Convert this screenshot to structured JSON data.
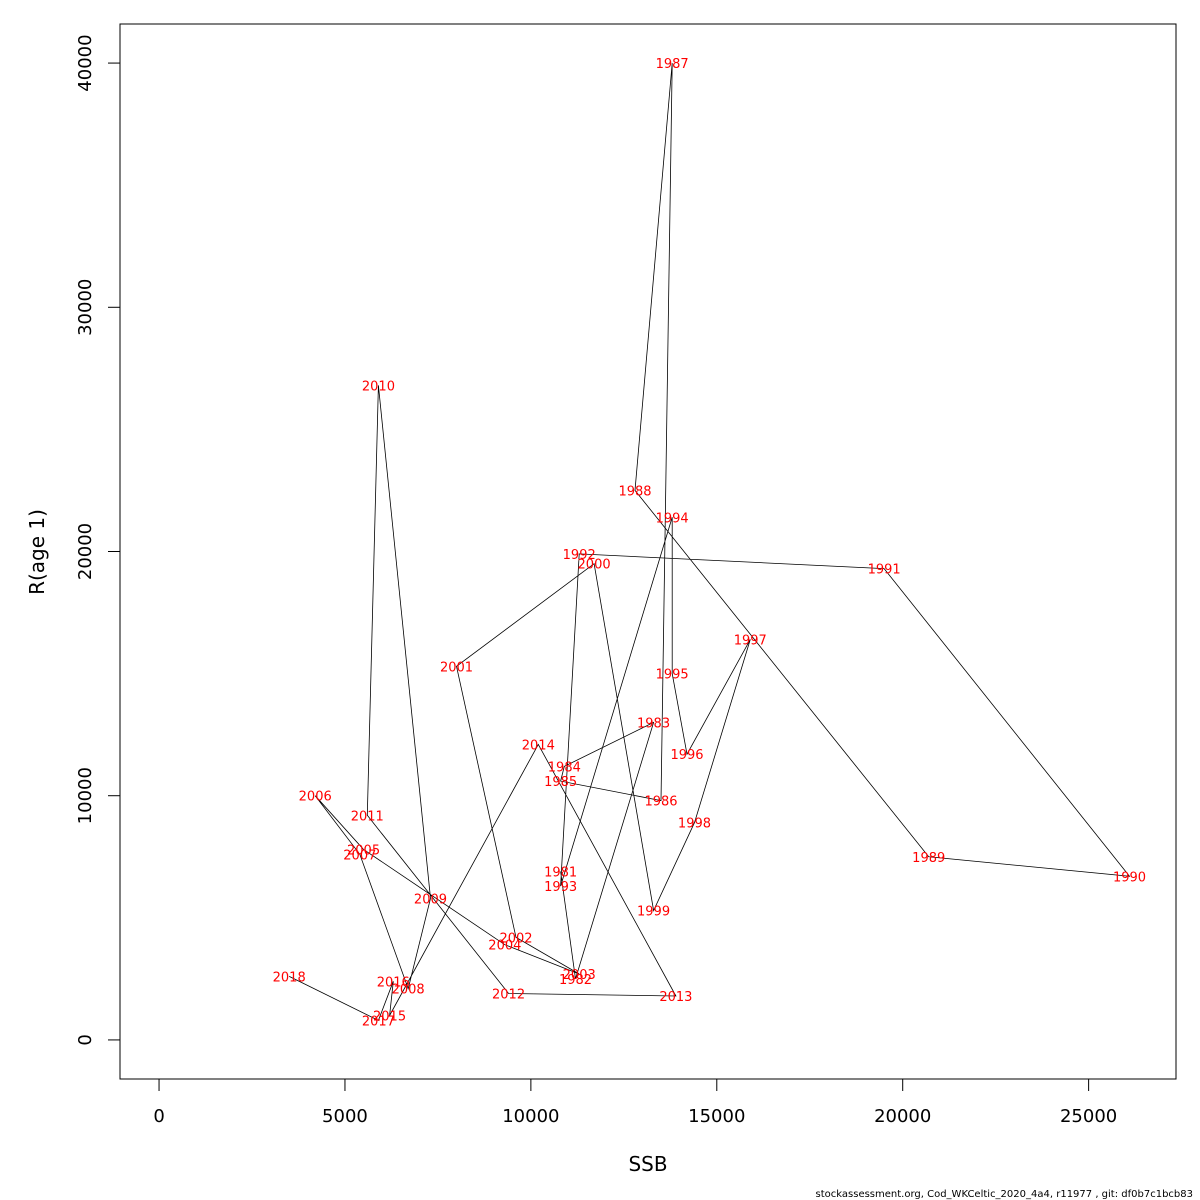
{
  "chart_data": {
    "type": "line",
    "xlabel": "SSB",
    "ylabel": "R(age 1)",
    "xlim": [
      -1050,
      27350
    ],
    "ylim": [
      -1600,
      41600
    ],
    "xticks": [
      0,
      5000,
      10000,
      15000,
      20000,
      25000
    ],
    "yticks": [
      0,
      10000,
      20000,
      30000,
      40000
    ],
    "grid": false,
    "line_color": "#000000",
    "label_color": "#ff0000",
    "points": [
      {
        "year": "1981",
        "x": 10800,
        "y": 6900
      },
      {
        "year": "1982",
        "x": 11200,
        "y": 2500
      },
      {
        "year": "1983",
        "x": 13300,
        "y": 13000
      },
      {
        "year": "1984",
        "x": 10900,
        "y": 11200
      },
      {
        "year": "1985",
        "x": 10800,
        "y": 10600
      },
      {
        "year": "1986",
        "x": 13500,
        "y": 9800
      },
      {
        "year": "1987",
        "x": 13800,
        "y": 40000
      },
      {
        "year": "1988",
        "x": 12800,
        "y": 22500
      },
      {
        "year": "1989",
        "x": 20700,
        "y": 7500
      },
      {
        "year": "1990",
        "x": 26100,
        "y": 6700
      },
      {
        "year": "1991",
        "x": 19500,
        "y": 19300
      },
      {
        "year": "1992",
        "x": 11300,
        "y": 19900
      },
      {
        "year": "1993",
        "x": 10800,
        "y": 6300
      },
      {
        "year": "1994",
        "x": 13800,
        "y": 21400
      },
      {
        "year": "1995",
        "x": 13800,
        "y": 15000
      },
      {
        "year": "1996",
        "x": 14200,
        "y": 11700
      },
      {
        "year": "1997",
        "x": 15900,
        "y": 16400
      },
      {
        "year": "1998",
        "x": 14400,
        "y": 8900
      },
      {
        "year": "1999",
        "x": 13300,
        "y": 5300
      },
      {
        "year": "2000",
        "x": 11700,
        "y": 19500
      },
      {
        "year": "2001",
        "x": 8000,
        "y": 15300
      },
      {
        "year": "2002",
        "x": 9600,
        "y": 4200
      },
      {
        "year": "2003",
        "x": 11300,
        "y": 2700
      },
      {
        "year": "2004",
        "x": 9300,
        "y": 3900
      },
      {
        "year": "2005",
        "x": 5500,
        "y": 7800
      },
      {
        "year": "2006",
        "x": 4200,
        "y": 10000
      },
      {
        "year": "2007",
        "x": 5400,
        "y": 7600
      },
      {
        "year": "2008",
        "x": 6700,
        "y": 2100
      },
      {
        "year": "2009",
        "x": 7300,
        "y": 5800
      },
      {
        "year": "2010",
        "x": 5900,
        "y": 26800
      },
      {
        "year": "2011",
        "x": 5600,
        "y": 9200
      },
      {
        "year": "2012",
        "x": 9400,
        "y": 1900
      },
      {
        "year": "2013",
        "x": 13900,
        "y": 1800
      },
      {
        "year": "2014",
        "x": 10200,
        "y": 12100
      },
      {
        "year": "2015",
        "x": 6200,
        "y": 1000
      },
      {
        "year": "2016",
        "x": 6300,
        "y": 2400
      },
      {
        "year": "2017",
        "x": 5900,
        "y": 800
      },
      {
        "year": "2018",
        "x": 3500,
        "y": 2600
      }
    ]
  },
  "footer": "stockassessment.org, Cod_WKCeltic_2020_4a4, r11977 , git: df0b7c1bcb83"
}
